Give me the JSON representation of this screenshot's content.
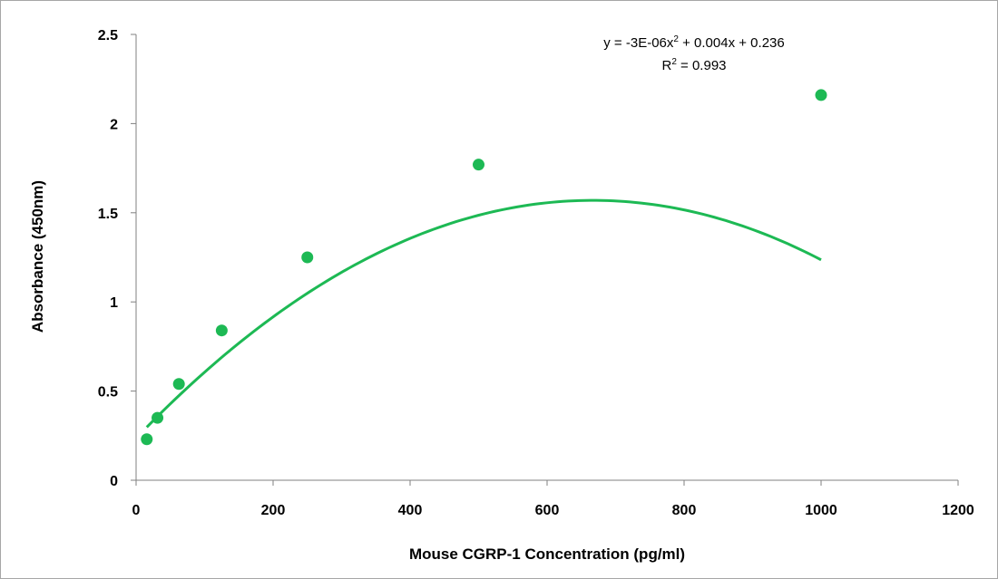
{
  "chart_data": {
    "type": "scatter",
    "title": "",
    "xlabel": "Mouse CGRP-1  Concentration (pg/ml)",
    "ylabel": "Absorbance (450nm)",
    "xlim": [
      0,
      1200
    ],
    "ylim": [
      0,
      2.5
    ],
    "x_ticks": [
      0,
      200,
      400,
      600,
      800,
      1000,
      1200
    ],
    "y_ticks": [
      0,
      0.5,
      1,
      1.5,
      2,
      2.5
    ],
    "x_tick_labels": [
      "0",
      "200",
      "400",
      "600",
      "800",
      "1000",
      "1200"
    ],
    "y_tick_labels": [
      "0",
      "0.5",
      "1",
      "1.5",
      "2",
      "2.5"
    ],
    "grid": false,
    "series": [
      {
        "x": [
          15.6,
          31.2,
          62.5,
          125,
          250,
          500,
          1000
        ],
        "y": [
          0.23,
          0.35,
          0.54,
          0.84,
          1.25,
          1.77,
          2.16
        ],
        "color": "#1db954"
      }
    ],
    "trendline": {
      "type": "polynomial",
      "order": 2,
      "coefficients": {
        "a": -3e-06,
        "b": 0.004,
        "c": 0.236
      },
      "x_range": [
        15.6,
        1000
      ],
      "color": "#1db954"
    },
    "annotations": {
      "equation_lhs": "y = -3E-06x",
      "equation_exp": "2",
      "equation_rhs": " + 0.004x + 0.236",
      "r2_base": "R",
      "r2_exp": "2",
      "r2_rhs": " = 0.993"
    }
  }
}
